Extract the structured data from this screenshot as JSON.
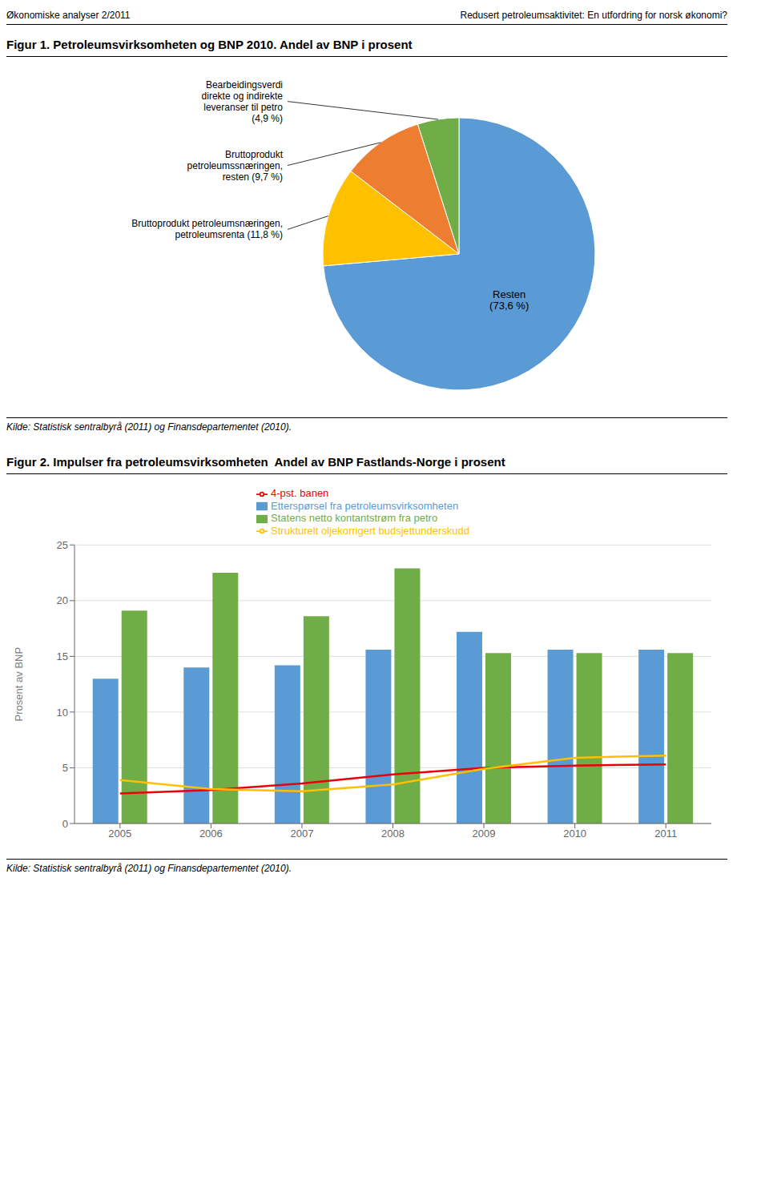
{
  "chart_data": [
    {
      "type": "pie",
      "title": "Figur 1. Petroleumsvirksomheten og BNP 2010. Andel av BNP i prosent",
      "values": [
        73.6,
        11.8,
        9.7,
        4.9
      ],
      "value_labels": [
        "Resten\n(73,6 %)",
        "Bruttoprodukt petroleumsnæringen,\npetroleumsrenta (11,8 %)",
        "Bruttoprodukt\npetroleumssnæringen,\nresten (9,7 %)",
        "Bearbeidingsverdi\ndirekte og indirekte\nleveranser til petro\n(4,9 %)"
      ],
      "colors": [
        "#5B9BD5",
        "#FFC000",
        "#ED7D31",
        "#70AD47"
      ],
      "data_labels": true,
      "annotations": [
        "Økonomiske analyser 2/2011",
        "Redusert petroleumsaktivitet: En utfordring for norsk økonomi?",
        "Kilde: Statistisk sentralbyrå (2011) og Finansdepartementet (2010)."
      ]
    },
    {
      "type": "bar",
      "title": "Figur 2. Impulser fra petroleumsvirksomheten  Andel av BNP Fastlands-Norge i prosent",
      "y_label": "Prosent av BNP",
      "categories": [
        "2005",
        "2006",
        "2007",
        "2008",
        "2009",
        "2010",
        "2011"
      ],
      "series": [
        {
          "name": "Etterspørsel fra petroleumsvirksomheten",
          "type": "bar",
          "color": "#5B9BD5",
          "values": [
            13.0,
            14.0,
            14.2,
            15.6,
            17.2,
            15.6,
            15.6
          ]
        },
        {
          "name": "Statens netto kontantstrøm fra petro",
          "type": "bar",
          "color": "#70AD47",
          "values": [
            19.1,
            22.5,
            18.6,
            22.9,
            15.3,
            15.3,
            15.3
          ]
        },
        {
          "name": "4-pst. banen",
          "type": "line",
          "color": "#E8000A",
          "values": [
            2.7,
            3.0,
            3.6,
            4.4,
            5.0,
            5.2,
            5.3
          ]
        },
        {
          "name": "Strukturelt oljekorrigert budsjettunderskudd",
          "type": "line",
          "color": "#FFC000",
          "values": [
            3.9,
            3.1,
            2.9,
            3.5,
            4.9,
            5.9,
            6.1
          ]
        }
      ],
      "ylim": [
        0,
        25
      ],
      "yticks": [
        0,
        5,
        10,
        15,
        20,
        25
      ],
      "grid": true,
      "legend": "top",
      "annotations": [
        "Kilde: Statistisk sentralbyrå (2011) og Finansdepartementet (2010)."
      ]
    }
  ]
}
